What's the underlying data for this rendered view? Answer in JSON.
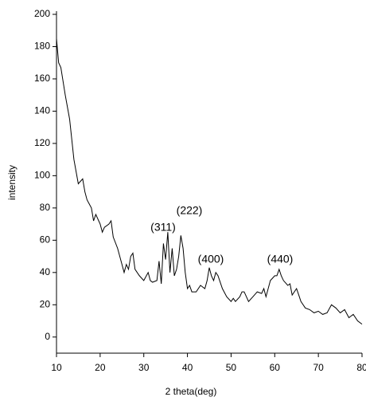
{
  "chart_data": {
    "type": "line",
    "x_label": "2 theta(deg)",
    "y_label": "intensity",
    "xlim": [
      10,
      80
    ],
    "ylim": [
      -10,
      200
    ],
    "xticks": [
      10,
      20,
      30,
      40,
      50,
      60,
      70,
      80
    ],
    "yticks": [
      0,
      20,
      40,
      60,
      80,
      100,
      120,
      140,
      160,
      180,
      200
    ],
    "annotations": [
      "(311)",
      "(222)",
      "(400)",
      "(440)"
    ],
    "x": [
      10,
      10.5,
      11,
      12,
      13,
      14,
      15,
      16,
      16.5,
      17,
      18,
      18.5,
      19,
      20,
      20.5,
      21,
      22,
      22.5,
      23,
      24,
      25,
      25.5,
      26,
      26.5,
      27,
      27.5,
      28,
      29,
      30,
      31,
      31.5,
      32,
      33,
      33.5,
      34,
      34.5,
      35,
      35.5,
      36,
      36.5,
      37,
      37.5,
      38,
      38.5,
      39,
      39.5,
      40,
      40.5,
      41,
      42,
      43,
      44,
      44.5,
      45,
      45.5,
      46,
      46.5,
      47,
      48,
      49,
      50,
      50.5,
      51,
      52,
      52.5,
      53,
      54,
      55,
      56,
      57,
      57.5,
      58,
      59,
      60,
      60.5,
      61,
      61.5,
      62,
      63,
      63.5,
      64,
      65,
      65.5,
      66,
      67,
      68,
      69,
      70,
      71,
      72,
      73,
      74,
      75,
      76,
      77,
      78,
      79,
      80
    ],
    "series": [
      {
        "color": "#000000",
        "values": [
          185,
          170,
          167,
          150,
          135,
          110,
          95,
          98,
          90,
          85,
          80,
          72,
          76,
          70,
          65,
          68,
          70,
          72,
          62,
          55,
          45,
          40,
          45,
          42,
          50,
          52,
          42,
          38,
          35,
          40,
          35,
          34,
          35,
          47,
          33,
          58,
          48,
          65,
          40,
          55,
          38,
          42,
          50,
          63,
          55,
          40,
          30,
          32,
          28,
          28,
          32,
          30,
          35,
          43,
          38,
          35,
          40,
          38,
          30,
          25,
          22,
          24,
          22,
          25,
          28,
          28,
          22,
          25,
          28,
          27,
          30,
          25,
          35,
          38,
          38,
          42,
          38,
          35,
          32,
          33,
          26,
          30,
          26,
          22,
          18,
          17,
          15,
          16,
          14,
          15,
          20,
          18,
          15,
          17,
          12,
          14,
          10,
          8
        ]
      }
    ]
  }
}
